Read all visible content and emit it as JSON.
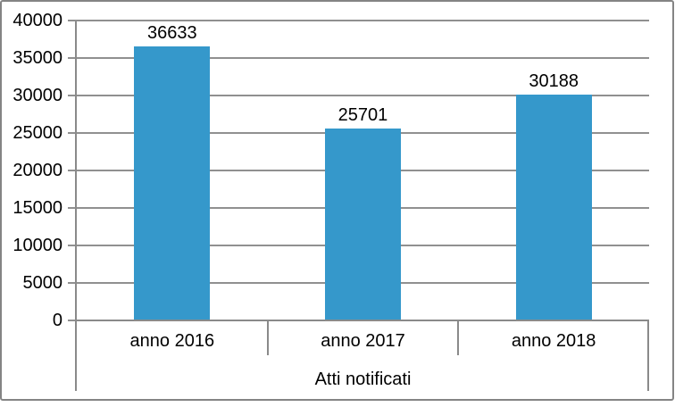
{
  "chart_data": {
    "type": "bar",
    "title": "",
    "categories": [
      "anno 2016",
      "anno 2017",
      "anno 2018"
    ],
    "values": [
      36633,
      25701,
      30188
    ],
    "value_labels": [
      "36633",
      "25701",
      "30188"
    ],
    "xlabel": "Atti notificati",
    "ylabel": "",
    "ylim": [
      0,
      40000
    ],
    "ytick_step": 5000,
    "ytick_labels": [
      "0",
      "5000",
      "10000",
      "15000",
      "20000",
      "25000",
      "30000",
      "35000",
      "40000"
    ],
    "grid": true,
    "legend": "none",
    "colors": {
      "bar_fill": "#3598cb",
      "gridline": "#909090",
      "axis_line": "#8a8a8a",
      "frame_border": "#848484",
      "text": "#000000",
      "background": "#ffffff"
    }
  }
}
